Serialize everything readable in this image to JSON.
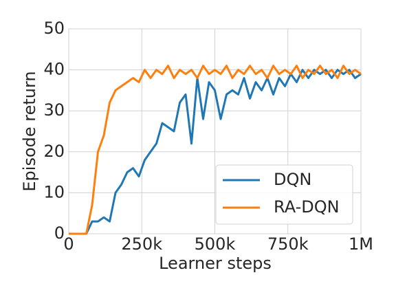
{
  "chart_data": {
    "type": "line",
    "xlabel": "Learner steps",
    "ylabel": "Episode return",
    "x": [
      0,
      20000,
      40000,
      60000,
      80000,
      100000,
      120000,
      140000,
      160000,
      180000,
      200000,
      220000,
      240000,
      260000,
      280000,
      300000,
      320000,
      340000,
      360000,
      380000,
      400000,
      420000,
      440000,
      460000,
      480000,
      500000,
      520000,
      540000,
      560000,
      580000,
      600000,
      620000,
      640000,
      660000,
      680000,
      700000,
      720000,
      740000,
      760000,
      780000,
      800000,
      820000,
      840000,
      860000,
      880000,
      900000,
      920000,
      940000,
      960000,
      980000,
      1000000
    ],
    "series": [
      {
        "name": "DQN",
        "color": "#1f77b4",
        "values": [
          0,
          0,
          0,
          0,
          3,
          3,
          4,
          3,
          10,
          12,
          15,
          16,
          14,
          18,
          20,
          22,
          27,
          26,
          25,
          32,
          34,
          22,
          38,
          28,
          37,
          35,
          28,
          34,
          35,
          34,
          38,
          33,
          37,
          35,
          38,
          34,
          38,
          36,
          39,
          37,
          40,
          38,
          40,
          39,
          40,
          38,
          40,
          39,
          40,
          38,
          39
        ]
      },
      {
        "name": "RA-DQN",
        "color": "#ff7f0e",
        "values": [
          0,
          0,
          0,
          0,
          7,
          20,
          24,
          32,
          35,
          36,
          37,
          38,
          37,
          40,
          38,
          40,
          39,
          41,
          38,
          40,
          39,
          40,
          38,
          41,
          39,
          40,
          39,
          41,
          38,
          40,
          39,
          41,
          39,
          40,
          38,
          41,
          39,
          40,
          39,
          41,
          38,
          40,
          39,
          41,
          39,
          40,
          38,
          41,
          39,
          40,
          39
        ]
      }
    ],
    "xlim": [
      0,
      1000000
    ],
    "xticks": [
      0,
      {
        "value": 250000,
        "label": "250k"
      },
      {
        "value": 500000,
        "label": "500k"
      },
      {
        "value": 750000,
        "label": "750k"
      },
      {
        "value": 1000000,
        "label": "1M"
      }
    ],
    "ylim": [
      0,
      50
    ],
    "yticks": [
      0,
      10,
      20,
      30,
      40,
      50
    ],
    "grid": true,
    "legend": "lower right"
  }
}
